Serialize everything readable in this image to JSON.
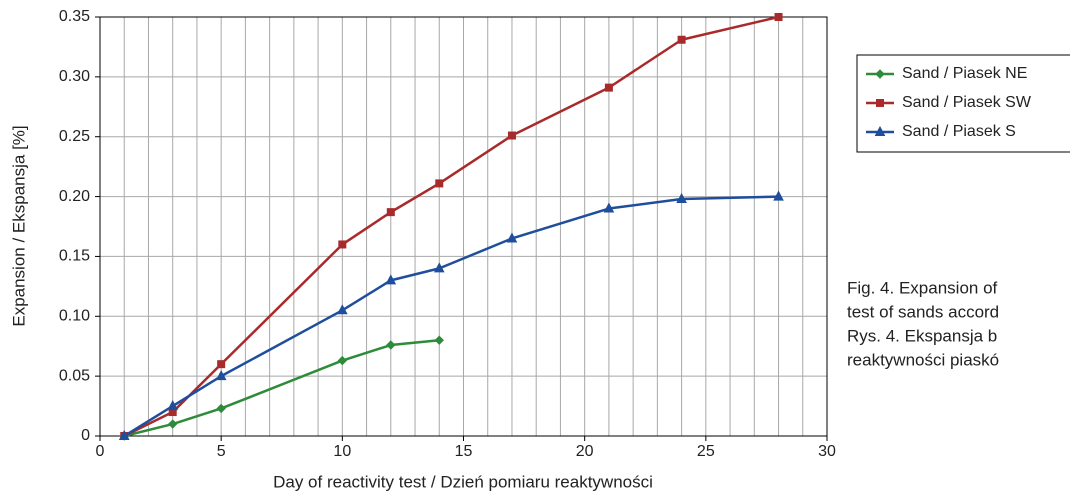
{
  "chart_data": {
    "type": "line",
    "xlabel": "Day of reactivity test / Dzień pomiaru reaktywności",
    "ylabel": "Expansion / Ekspansja [%]",
    "xlim": [
      0,
      30
    ],
    "xticks": [
      0,
      5,
      10,
      15,
      20,
      25,
      30
    ],
    "ylim": [
      0,
      0.35
    ],
    "yticks": [
      0,
      0.05,
      {
        "value": 0.1,
        "label": "0.10"
      },
      0.15,
      {
        "value": 0.2,
        "label": "0.20"
      },
      0.25,
      {
        "value": 0.3,
        "label": "0.30"
      },
      0.35
    ],
    "grid": true,
    "minor_xgrid": 1,
    "legend": "right",
    "series": [
      {
        "name": "Sand / Piasek NE",
        "color": "#2e8b3a",
        "marker": "diamond",
        "x": [
          1,
          3,
          5,
          10,
          12,
          14
        ],
        "values": [
          0,
          0.01,
          0.023,
          0.063,
          0.076,
          0.08
        ]
      },
      {
        "name": "Sand / Piasek SW",
        "color": "#a82a2a",
        "marker": "square",
        "x": [
          1,
          3,
          5,
          10,
          12,
          14,
          17,
          21,
          24,
          28
        ],
        "values": [
          0,
          0.02,
          0.06,
          0.16,
          0.187,
          0.211,
          0.251,
          0.291,
          0.331,
          0.35
        ]
      },
      {
        "name": "Sand / Piasek S",
        "color": "#1f4e9c",
        "marker": "triangle",
        "x": [
          1,
          3,
          5,
          10,
          12,
          14,
          17,
          21,
          24,
          28
        ],
        "values": [
          0,
          0.025,
          0.05,
          0.105,
          0.13,
          0.14,
          0.165,
          0.19,
          0.198,
          0.2
        ]
      }
    ],
    "annotations": [
      "Fig. 4. Expansion of",
      "test of sands accord",
      "Rys. 4. Ekspansja b",
      "reaktywności piaskó"
    ]
  }
}
